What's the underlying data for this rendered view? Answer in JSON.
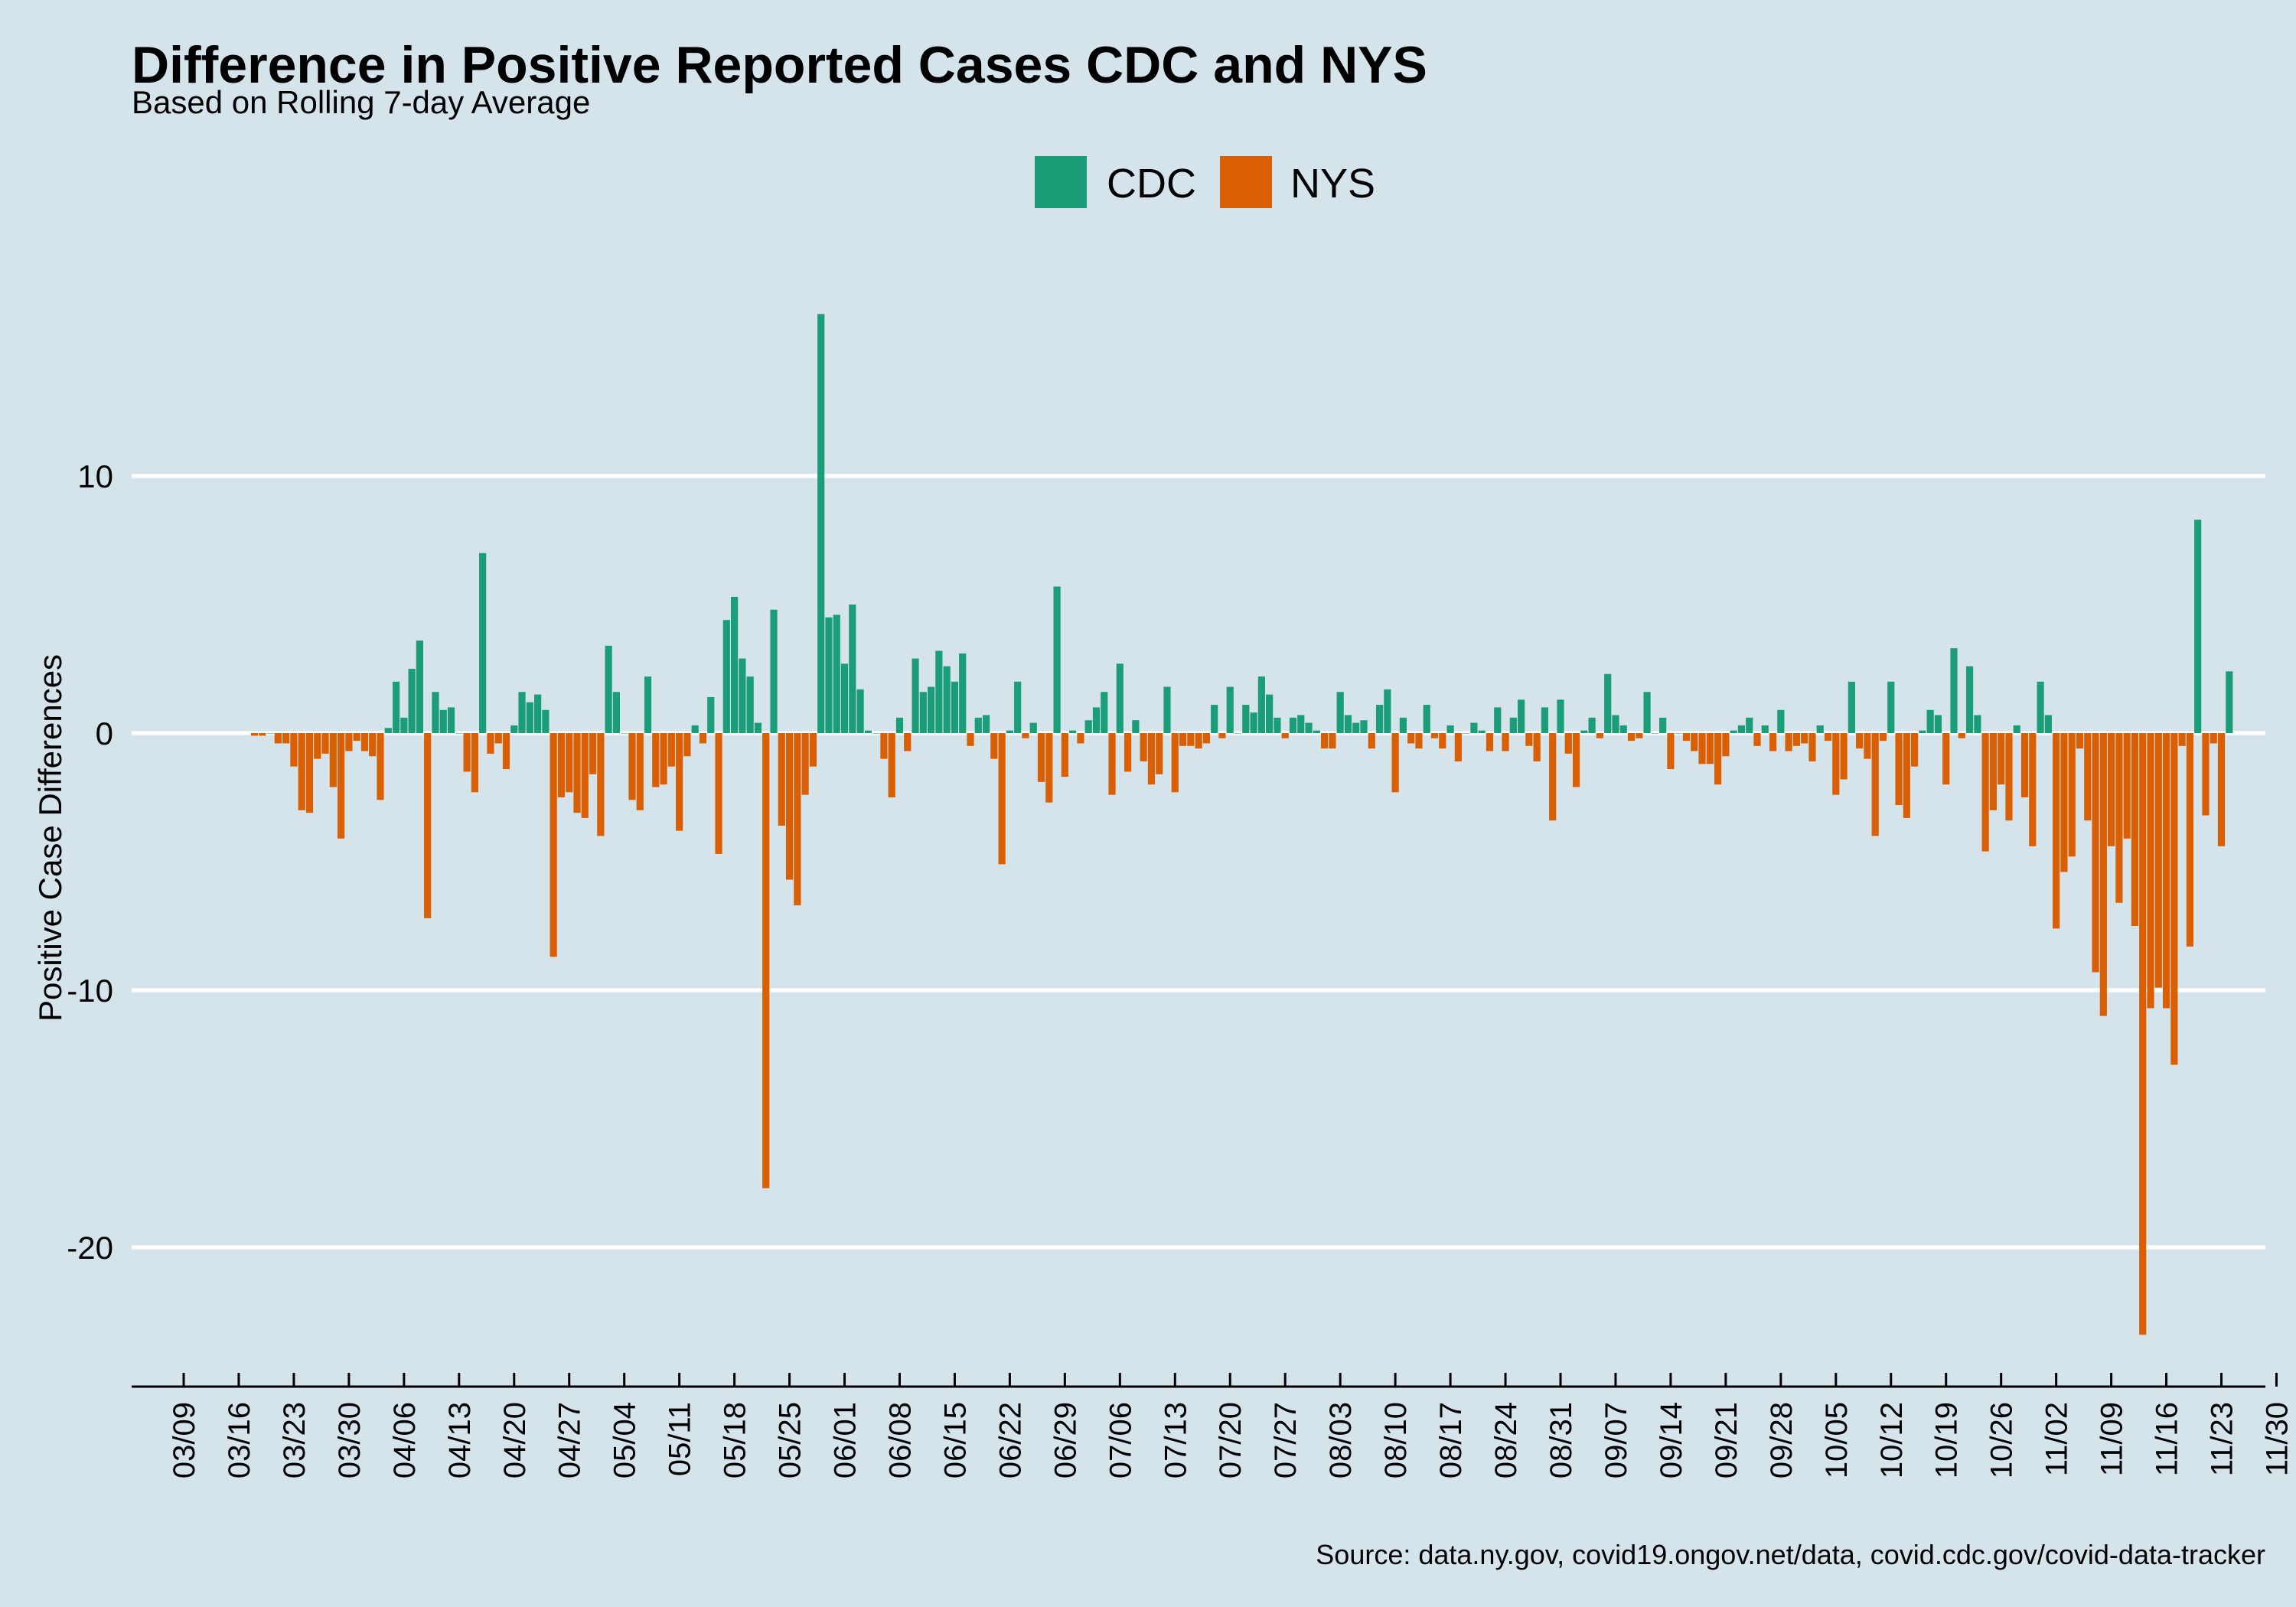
{
  "chart_data": {
    "type": "bar",
    "title": "Difference in Positive Reported Cases CDC and NYS",
    "subtitle": "Based on Rolling 7-day Average",
    "ylabel": "Positive Case Differences",
    "xlabel": "",
    "caption": "Source: data.ny.gov, covid19.ongov.net/data, covid.cdc.gov/covid-data-tracker",
    "ylim": [
      -25,
      18
    ],
    "yticks": [
      10,
      0,
      -10,
      -20
    ],
    "ytick_labels": [
      "10",
      "0",
      "-10",
      "-20"
    ],
    "grid": true,
    "legend_position": "top",
    "legend": [
      {
        "name": "CDC",
        "color": "#1b9e77"
      },
      {
        "name": "NYS",
        "color": "#d95f02"
      }
    ],
    "x_start": "2020-03-09",
    "x_end": "2020-12-01",
    "xtick_labels": [
      "03/09",
      "03/16",
      "03/23",
      "03/30",
      "04/06",
      "04/13",
      "04/20",
      "04/27",
      "05/04",
      "05/11",
      "05/18",
      "05/25",
      "06/01",
      "06/08",
      "06/15",
      "06/22",
      "06/29",
      "07/06",
      "07/13",
      "07/20",
      "07/27",
      "08/03",
      "08/10",
      "08/17",
      "08/24",
      "08/31",
      "09/07",
      "09/14",
      "09/21",
      "09/28",
      "10/05",
      "10/12",
      "10/19",
      "10/26",
      "11/02",
      "11/09",
      "11/16",
      "11/23",
      "11/30"
    ],
    "series": [
      {
        "name": "CDC",
        "color": "#1b9e77"
      },
      {
        "name": "NYS",
        "color": "#d95f02"
      }
    ],
    "bars": [
      [
        "2020-03-18",
        -0.1
      ],
      [
        "2020-03-19",
        -0.1
      ],
      [
        "2020-03-20",
        0
      ],
      [
        "2020-03-21",
        -0.4
      ],
      [
        "2020-03-22",
        -0.4
      ],
      [
        "2020-03-23",
        -1.3
      ],
      [
        "2020-03-24",
        -3.0
      ],
      [
        "2020-03-25",
        -3.1
      ],
      [
        "2020-03-26",
        -1.0
      ],
      [
        "2020-03-27",
        -0.8
      ],
      [
        "2020-03-28",
        -2.1
      ],
      [
        "2020-03-29",
        -4.1
      ],
      [
        "2020-03-30",
        -0.7
      ],
      [
        "2020-03-31",
        -0.3
      ],
      [
        "2020-04-01",
        -0.7
      ],
      [
        "2020-04-02",
        -0.9
      ],
      [
        "2020-04-03",
        -2.6
      ],
      [
        "2020-04-04",
        0.2
      ],
      [
        "2020-04-05",
        2.0
      ],
      [
        "2020-04-06",
        0.6
      ],
      [
        "2020-04-07",
        2.5
      ],
      [
        "2020-04-08",
        3.6
      ],
      [
        "2020-04-09",
        -7.2
      ],
      [
        "2020-04-10",
        1.6
      ],
      [
        "2020-04-11",
        0.9
      ],
      [
        "2020-04-12",
        1.0
      ],
      [
        "2020-04-13",
        0
      ],
      [
        "2020-04-14",
        -1.5
      ],
      [
        "2020-04-15",
        -2.3
      ],
      [
        "2020-04-16",
        7.0
      ],
      [
        "2020-04-17",
        -0.8
      ],
      [
        "2020-04-18",
        -0.4
      ],
      [
        "2020-04-19",
        -1.4
      ],
      [
        "2020-04-20",
        0.3
      ],
      [
        "2020-04-21",
        1.6
      ],
      [
        "2020-04-22",
        1.2
      ],
      [
        "2020-04-23",
        1.5
      ],
      [
        "2020-04-24",
        0.9
      ],
      [
        "2020-04-25",
        -8.7
      ],
      [
        "2020-04-26",
        -2.5
      ],
      [
        "2020-04-27",
        -2.3
      ],
      [
        "2020-04-28",
        -3.1
      ],
      [
        "2020-04-29",
        -3.3
      ],
      [
        "2020-04-30",
        -1.6
      ],
      [
        "2020-05-01",
        -4.0
      ],
      [
        "2020-05-02",
        3.4
      ],
      [
        "2020-05-03",
        1.6
      ],
      [
        "2020-05-04",
        0
      ],
      [
        "2020-05-05",
        -2.6
      ],
      [
        "2020-05-06",
        -3.0
      ],
      [
        "2020-05-07",
        2.2
      ],
      [
        "2020-05-08",
        -2.1
      ],
      [
        "2020-05-09",
        -2.0
      ],
      [
        "2020-05-10",
        -1.3
      ],
      [
        "2020-05-11",
        -3.8
      ],
      [
        "2020-05-12",
        -0.9
      ],
      [
        "2020-05-13",
        0.3
      ],
      [
        "2020-05-14",
        -0.4
      ],
      [
        "2020-05-15",
        1.4
      ],
      [
        "2020-05-16",
        -4.7
      ],
      [
        "2020-05-17",
        4.4
      ],
      [
        "2020-05-18",
        5.3
      ],
      [
        "2020-05-19",
        2.9
      ],
      [
        "2020-05-20",
        2.2
      ],
      [
        "2020-05-21",
        0.4
      ],
      [
        "2020-05-22",
        -17.7
      ],
      [
        "2020-05-23",
        4.8
      ],
      [
        "2020-05-24",
        -3.6
      ],
      [
        "2020-05-25",
        -5.7
      ],
      [
        "2020-05-26",
        -6.7
      ],
      [
        "2020-05-27",
        -2.4
      ],
      [
        "2020-05-28",
        -1.3
      ],
      [
        "2020-05-29",
        16.3
      ],
      [
        "2020-05-30",
        4.5
      ],
      [
        "2020-05-31",
        4.6
      ],
      [
        "2020-06-01",
        2.7
      ],
      [
        "2020-06-02",
        5.0
      ],
      [
        "2020-06-03",
        1.7
      ],
      [
        "2020-06-04",
        0.1
      ],
      [
        "2020-06-05",
        0
      ],
      [
        "2020-06-06",
        -1.0
      ],
      [
        "2020-06-07",
        -2.5
      ],
      [
        "2020-06-08",
        0.6
      ],
      [
        "2020-06-09",
        -0.7
      ],
      [
        "2020-06-10",
        2.9
      ],
      [
        "2020-06-11",
        1.6
      ],
      [
        "2020-06-12",
        1.8
      ],
      [
        "2020-06-13",
        3.2
      ],
      [
        "2020-06-14",
        2.6
      ],
      [
        "2020-06-15",
        2.0
      ],
      [
        "2020-06-16",
        3.1
      ],
      [
        "2020-06-17",
        -0.5
      ],
      [
        "2020-06-18",
        0.6
      ],
      [
        "2020-06-19",
        0.7
      ],
      [
        "2020-06-20",
        -1.0
      ],
      [
        "2020-06-21",
        -5.1
      ],
      [
        "2020-06-22",
        0.1
      ],
      [
        "2020-06-23",
        2.0
      ],
      [
        "2020-06-24",
        -0.2
      ],
      [
        "2020-06-25",
        0.4
      ],
      [
        "2020-06-26",
        -1.9
      ],
      [
        "2020-06-27",
        -2.7
      ],
      [
        "2020-06-28",
        5.7
      ],
      [
        "2020-06-29",
        -1.7
      ],
      [
        "2020-06-30",
        0.1
      ],
      [
        "2020-07-01",
        -0.4
      ],
      [
        "2020-07-02",
        0.5
      ],
      [
        "2020-07-03",
        1.0
      ],
      [
        "2020-07-04",
        1.6
      ],
      [
        "2020-07-05",
        -2.4
      ],
      [
        "2020-07-06",
        2.7
      ],
      [
        "2020-07-07",
        -1.5
      ],
      [
        "2020-07-08",
        0.5
      ],
      [
        "2020-07-09",
        -1.1
      ],
      [
        "2020-07-10",
        -2.0
      ],
      [
        "2020-07-11",
        -1.6
      ],
      [
        "2020-07-12",
        1.8
      ],
      [
        "2020-07-13",
        -2.3
      ],
      [
        "2020-07-14",
        -0.5
      ],
      [
        "2020-07-15",
        -0.5
      ],
      [
        "2020-07-16",
        -0.6
      ],
      [
        "2020-07-17",
        -0.4
      ],
      [
        "2020-07-18",
        1.1
      ],
      [
        "2020-07-19",
        -0.2
      ],
      [
        "2020-07-20",
        1.8
      ],
      [
        "2020-07-21",
        0
      ],
      [
        "2020-07-22",
        1.1
      ],
      [
        "2020-07-23",
        0.8
      ],
      [
        "2020-07-24",
        2.2
      ],
      [
        "2020-07-25",
        1.5
      ],
      [
        "2020-07-26",
        0.6
      ],
      [
        "2020-07-27",
        -0.2
      ],
      [
        "2020-07-28",
        0.6
      ],
      [
        "2020-07-29",
        0.7
      ],
      [
        "2020-07-30",
        0.4
      ],
      [
        "2020-07-31",
        0.1
      ],
      [
        "2020-08-01",
        -0.6
      ],
      [
        "2020-08-02",
        -0.6
      ],
      [
        "2020-08-03",
        1.6
      ],
      [
        "2020-08-04",
        0.7
      ],
      [
        "2020-08-05",
        0.4
      ],
      [
        "2020-08-06",
        0.5
      ],
      [
        "2020-08-07",
        -0.6
      ],
      [
        "2020-08-08",
        1.1
      ],
      [
        "2020-08-09",
        1.7
      ],
      [
        "2020-08-10",
        -2.3
      ],
      [
        "2020-08-11",
        0.6
      ],
      [
        "2020-08-12",
        -0.4
      ],
      [
        "2020-08-13",
        -0.6
      ],
      [
        "2020-08-14",
        1.1
      ],
      [
        "2020-08-15",
        -0.2
      ],
      [
        "2020-08-16",
        -0.6
      ],
      [
        "2020-08-17",
        0.3
      ],
      [
        "2020-08-18",
        -1.1
      ],
      [
        "2020-08-19",
        0
      ],
      [
        "2020-08-20",
        0.4
      ],
      [
        "2020-08-21",
        0.1
      ],
      [
        "2020-08-22",
        -0.7
      ],
      [
        "2020-08-23",
        1.0
      ],
      [
        "2020-08-24",
        -0.7
      ],
      [
        "2020-08-25",
        0.6
      ],
      [
        "2020-08-26",
        1.3
      ],
      [
        "2020-08-27",
        -0.5
      ],
      [
        "2020-08-28",
        -1.1
      ],
      [
        "2020-08-29",
        1.0
      ],
      [
        "2020-08-30",
        -3.4
      ],
      [
        "2020-08-31",
        1.3
      ],
      [
        "2020-09-01",
        -0.8
      ],
      [
        "2020-09-02",
        -2.1
      ],
      [
        "2020-09-03",
        0.1
      ],
      [
        "2020-09-04",
        0.6
      ],
      [
        "2020-09-05",
        -0.2
      ],
      [
        "2020-09-06",
        2.3
      ],
      [
        "2020-09-07",
        0.7
      ],
      [
        "2020-09-08",
        0.3
      ],
      [
        "2020-09-09",
        -0.3
      ],
      [
        "2020-09-10",
        -0.2
      ],
      [
        "2020-09-11",
        1.6
      ],
      [
        "2020-09-12",
        0
      ],
      [
        "2020-09-13",
        0.6
      ],
      [
        "2020-09-14",
        -1.4
      ],
      [
        "2020-09-15",
        0
      ],
      [
        "2020-09-16",
        -0.3
      ],
      [
        "2020-09-17",
        -0.7
      ],
      [
        "2020-09-18",
        -1.2
      ],
      [
        "2020-09-19",
        -1.2
      ],
      [
        "2020-09-20",
        -2.0
      ],
      [
        "2020-09-21",
        -0.9
      ],
      [
        "2020-09-22",
        0.1
      ],
      [
        "2020-09-23",
        0.3
      ],
      [
        "2020-09-24",
        0.6
      ],
      [
        "2020-09-25",
        -0.5
      ],
      [
        "2020-09-26",
        0.3
      ],
      [
        "2020-09-27",
        -0.7
      ],
      [
        "2020-09-28",
        0.9
      ],
      [
        "2020-09-29",
        -0.7
      ],
      [
        "2020-09-30",
        -0.5
      ],
      [
        "2020-10-01",
        -0.4
      ],
      [
        "2020-10-02",
        -1.1
      ],
      [
        "2020-10-03",
        0.3
      ],
      [
        "2020-10-04",
        -0.3
      ],
      [
        "2020-10-05",
        -2.4
      ],
      [
        "2020-10-06",
        -1.8
      ],
      [
        "2020-10-07",
        2.0
      ],
      [
        "2020-10-08",
        -0.6
      ],
      [
        "2020-10-09",
        -1.0
      ],
      [
        "2020-10-10",
        -4.0
      ],
      [
        "2020-10-11",
        -0.3
      ],
      [
        "2020-10-12",
        2.0
      ],
      [
        "2020-10-13",
        -2.8
      ],
      [
        "2020-10-14",
        -3.3
      ],
      [
        "2020-10-15",
        -1.3
      ],
      [
        "2020-10-16",
        0.1
      ],
      [
        "2020-10-17",
        0.9
      ],
      [
        "2020-10-18",
        0.7
      ],
      [
        "2020-10-19",
        -2.0
      ],
      [
        "2020-10-20",
        3.3
      ],
      [
        "2020-10-21",
        -0.2
      ],
      [
        "2020-10-22",
        2.6
      ],
      [
        "2020-10-23",
        0.7
      ],
      [
        "2020-10-24",
        -4.6
      ],
      [
        "2020-10-25",
        -3.0
      ],
      [
        "2020-10-26",
        -2.0
      ],
      [
        "2020-10-27",
        -3.4
      ],
      [
        "2020-10-28",
        0.3
      ],
      [
        "2020-10-29",
        -2.5
      ],
      [
        "2020-10-30",
        -4.4
      ],
      [
        "2020-10-31",
        2.0
      ],
      [
        "2020-11-01",
        0.7
      ],
      [
        "2020-11-02",
        -7.6
      ],
      [
        "2020-11-03",
        -5.4
      ],
      [
        "2020-11-04",
        -4.8
      ],
      [
        "2020-11-05",
        -0.6
      ],
      [
        "2020-11-06",
        -3.4
      ],
      [
        "2020-11-07",
        -9.3
      ],
      [
        "2020-11-08",
        -11.0
      ],
      [
        "2020-11-09",
        -4.4
      ],
      [
        "2020-11-10",
        -6.6
      ],
      [
        "2020-11-11",
        -4.1
      ],
      [
        "2020-11-12",
        -7.5
      ],
      [
        "2020-11-13",
        -23.4
      ],
      [
        "2020-11-14",
        -10.7
      ],
      [
        "2020-11-15",
        -9.9
      ],
      [
        "2020-11-16",
        -10.7
      ],
      [
        "2020-11-17",
        -12.9
      ],
      [
        "2020-11-18",
        -0.5
      ],
      [
        "2020-11-19",
        -8.3
      ],
      [
        "2020-11-20",
        8.3
      ],
      [
        "2020-11-21",
        -3.2
      ],
      [
        "2020-11-22",
        -0.4
      ],
      [
        "2020-11-23",
        -4.4
      ],
      [
        "2020-11-24",
        2.4
      ]
    ]
  }
}
